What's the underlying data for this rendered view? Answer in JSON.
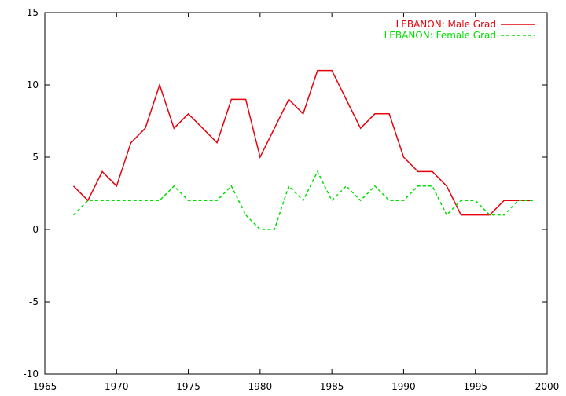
{
  "chart_data": {
    "type": "line",
    "title": "",
    "xlabel": "",
    "ylabel": "",
    "xlim": [
      1965,
      2000
    ],
    "ylim": [
      -10,
      15
    ],
    "x_ticks": [
      1965,
      1970,
      1975,
      1980,
      1985,
      1990,
      1995,
      2000
    ],
    "y_ticks": [
      -10,
      -5,
      0,
      5,
      10,
      15
    ],
    "x_tick_labels": [
      "1965",
      "1970",
      "1975",
      "1980",
      "1985",
      "1990",
      "1995",
      "2000"
    ],
    "y_tick_labels": [
      "-10",
      "-5",
      "0",
      "5",
      "10",
      "15"
    ],
    "grid": false,
    "legend_position": "top-right",
    "x": [
      1967,
      1968,
      1969,
      1970,
      1971,
      1972,
      1973,
      1974,
      1975,
      1976,
      1977,
      1978,
      1979,
      1980,
      1981,
      1982,
      1983,
      1984,
      1985,
      1986,
      1987,
      1988,
      1989,
      1990,
      1991,
      1992,
      1993,
      1994,
      1995,
      1996,
      1997,
      1998,
      1999
    ],
    "series": [
      {
        "name": "LEBANON: Male Grad",
        "color": "#e8000b",
        "dash": "solid",
        "values": [
          3,
          2,
          4,
          3,
          6,
          7,
          10,
          7,
          8,
          7,
          6,
          9,
          9,
          5,
          7,
          9,
          8,
          11,
          11,
          9,
          7,
          8,
          8,
          5,
          4,
          4,
          3,
          1,
          1,
          1,
          2,
          2,
          2
        ]
      },
      {
        "name": "LEBANON: Female Grad",
        "color": "#00e000",
        "dash": "dashed",
        "values": [
          1,
          2,
          2,
          2,
          2,
          2,
          2,
          3,
          2,
          2,
          2,
          3,
          1,
          0,
          0,
          3,
          2,
          4,
          2,
          3,
          2,
          3,
          2,
          2,
          3,
          3,
          1,
          2,
          2,
          1,
          1,
          2,
          2
        ]
      }
    ]
  }
}
